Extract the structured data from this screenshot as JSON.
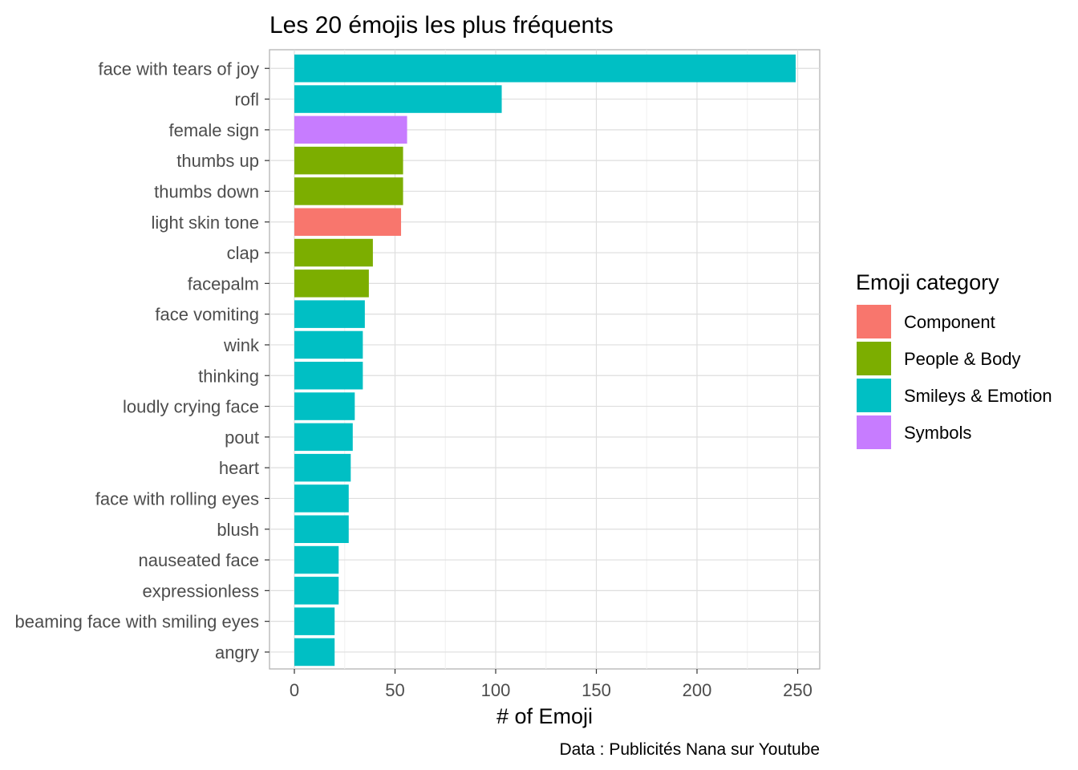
{
  "chart_data": {
    "type": "bar",
    "orientation": "horizontal",
    "title": "Les 20 émojis les plus fréquents",
    "xlabel": "# of Emoji",
    "ylabel": "",
    "caption": "Data : Publicités Nana sur Youtube",
    "xlim": [
      0,
      260
    ],
    "xticks": [
      0,
      50,
      100,
      150,
      200,
      250
    ],
    "grid": true,
    "legend_placement": "right",
    "legend_title": "Emoji category",
    "categories": [
      "face with tears of joy",
      "rofl",
      "female sign",
      "thumbs up",
      "thumbs down",
      "light skin tone",
      "clap",
      "facepalm",
      "face vomiting",
      "wink",
      "thinking",
      "loudly crying face",
      "pout",
      "heart",
      "face with rolling eyes",
      "blush",
      "nauseated face",
      "expressionless",
      "beaming face with smiling eyes",
      "angry"
    ],
    "values": [
      249,
      103,
      56,
      54,
      54,
      53,
      39,
      37,
      35,
      34,
      34,
      30,
      29,
      28,
      27,
      27,
      22,
      22,
      20,
      20
    ],
    "groups": [
      "Smileys & Emotion",
      "Smileys & Emotion",
      "Symbols",
      "People & Body",
      "People & Body",
      "Component",
      "People & Body",
      "People & Body",
      "Smileys & Emotion",
      "Smileys & Emotion",
      "Smileys & Emotion",
      "Smileys & Emotion",
      "Smileys & Emotion",
      "Smileys & Emotion",
      "Smileys & Emotion",
      "Smileys & Emotion",
      "Smileys & Emotion",
      "Smileys & Emotion",
      "Smileys & Emotion",
      "Smileys & Emotion"
    ],
    "legend": [
      {
        "name": "Component",
        "color": "#F8766D"
      },
      {
        "name": "People & Body",
        "color": "#7CAE00"
      },
      {
        "name": "Smileys & Emotion",
        "color": "#00BFC4"
      },
      {
        "name": "Symbols",
        "color": "#C77CFF"
      }
    ]
  }
}
